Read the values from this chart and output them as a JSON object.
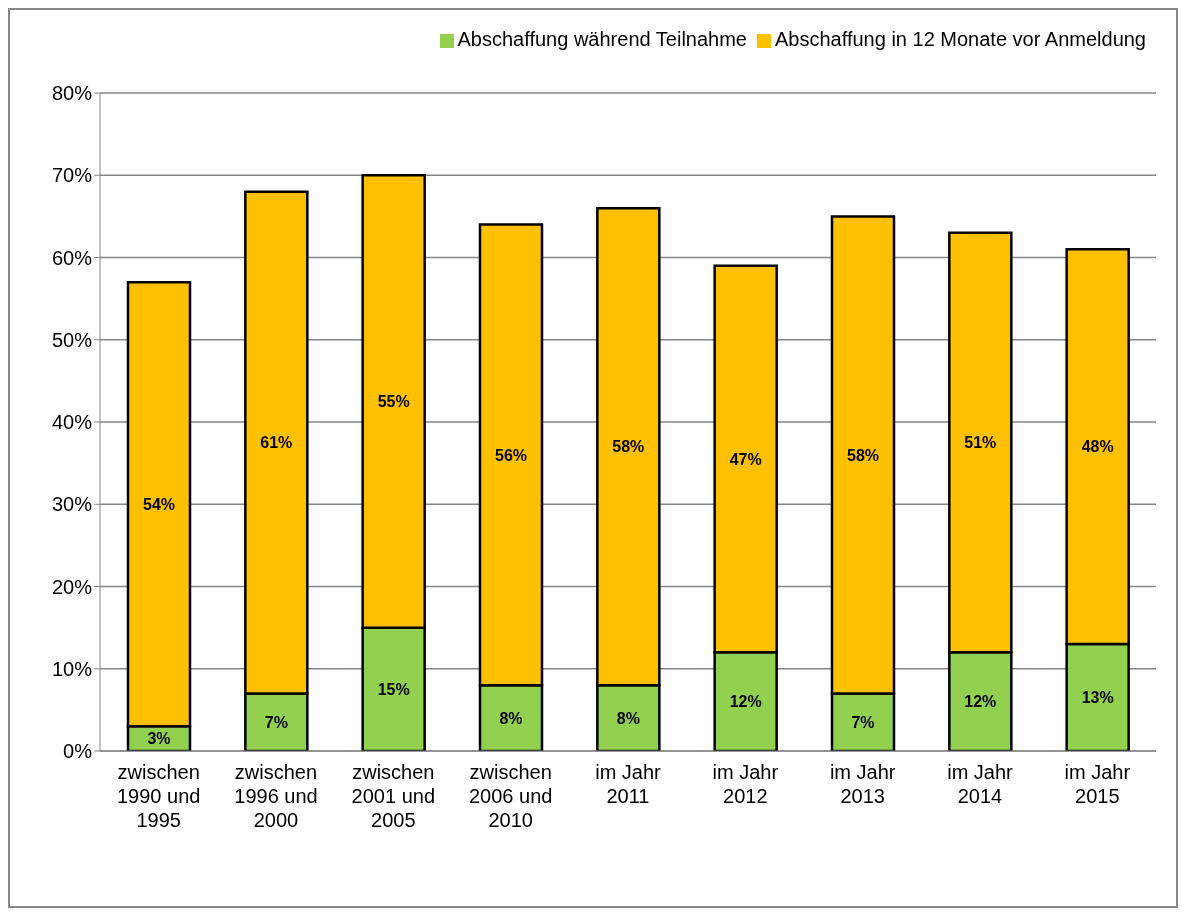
{
  "chart_data": {
    "type": "bar",
    "stacked": true,
    "categories": [
      "zwischen 1990 und 1995",
      "zwischen 1996 und 2000",
      "zwischen 2001 und 2005",
      "zwischen 2006 und 2010",
      "im Jahr 2011",
      "im Jahr 2012",
      "im Jahr 2013",
      "im Jahr 2014",
      "im Jahr 2015"
    ],
    "series": [
      {
        "name": "Abschaffung während Teilnahme",
        "color": "#92d050",
        "values": [
          3,
          7,
          15,
          8,
          8,
          12,
          7,
          12,
          13
        ],
        "value_labels": [
          "3%",
          "7%",
          "15%",
          "8%",
          "8%",
          "12%",
          "7%",
          "12%",
          "13%"
        ]
      },
      {
        "name": "Abschaffung in 12 Monate vor Anmeldung",
        "color": "#ffc000",
        "values": [
          54,
          61,
          55,
          56,
          58,
          47,
          58,
          51,
          48
        ],
        "value_labels": [
          "54%",
          "61%",
          "55%",
          "56%",
          "58%",
          "47%",
          "58%",
          "51%",
          "48%"
        ]
      }
    ],
    "ylim": [
      0,
      80
    ],
    "yticks": [
      {
        "value": 0,
        "label": "0%"
      },
      {
        "value": 10,
        "label": "10%"
      },
      {
        "value": 20,
        "label": "20%"
      },
      {
        "value": 30,
        "label": "30%"
      },
      {
        "value": 40,
        "label": "40%"
      },
      {
        "value": 50,
        "label": "50%"
      },
      {
        "value": 60,
        "label": "60%"
      },
      {
        "value": 70,
        "label": "70%"
      },
      {
        "value": 80,
        "label": "80%"
      }
    ],
    "grid": "y",
    "legend": "top right"
  }
}
